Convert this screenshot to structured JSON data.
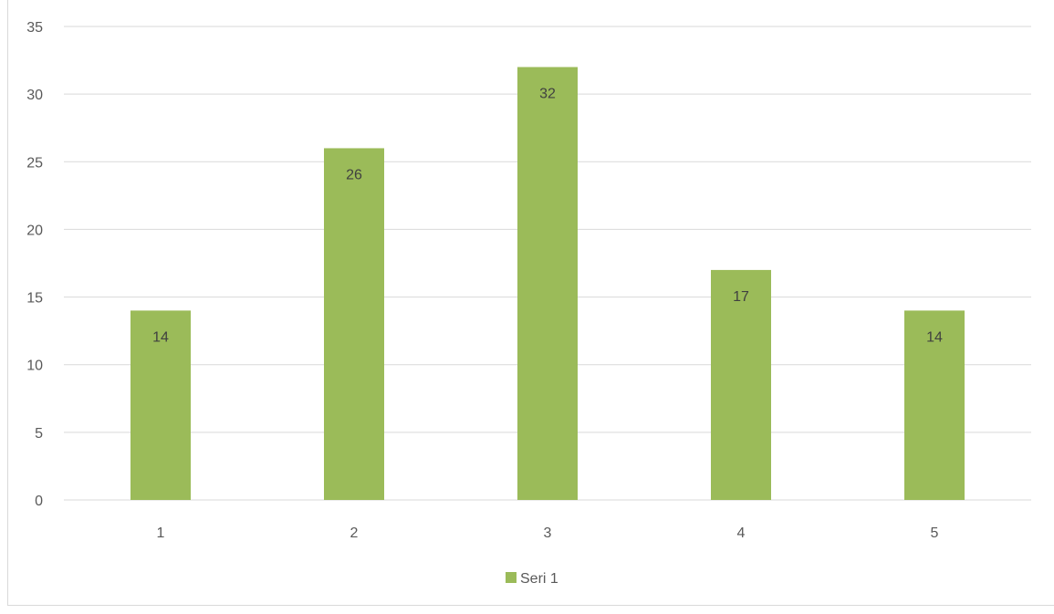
{
  "chart_data": {
    "type": "bar",
    "categories": [
      "1",
      "2",
      "3",
      "4",
      "5"
    ],
    "series": [
      {
        "name": "Seri 1",
        "values": [
          14,
          26,
          32,
          17,
          14
        ],
        "color": "#9bbb59"
      }
    ],
    "title": "",
    "xlabel": "",
    "ylabel": "",
    "ylim": [
      0,
      35
    ],
    "yticks": [
      "0",
      "5",
      "10",
      "15",
      "20",
      "25",
      "30",
      "35"
    ],
    "grid": true,
    "legend_position": "bottom",
    "data_labels": true,
    "colors": {
      "bar": "#9bbb59",
      "gridline": "#d9d9d9",
      "axis_text": "#595959",
      "data_label": "#404040",
      "border": "#d9d9d9"
    }
  }
}
